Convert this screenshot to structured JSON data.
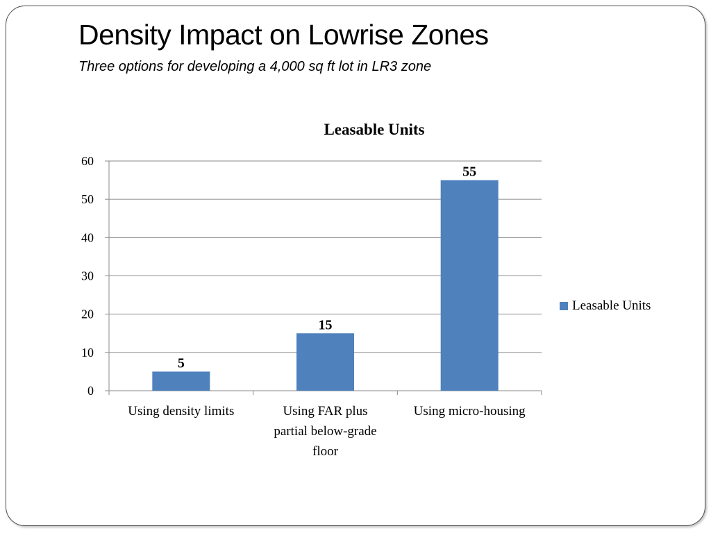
{
  "slide": {
    "title": "Density Impact on Lowrise Zones",
    "subtitle": "Three options for developing a 4,000 sq ft lot in LR3  zone"
  },
  "chart_data": {
    "type": "bar",
    "title": "Leasable Units",
    "xlabel": "",
    "ylabel": "",
    "categories": [
      "Using density limits",
      "Using FAR plus partial below-grade floor",
      "Using micro-housing"
    ],
    "category_lines": [
      [
        "Using density limits"
      ],
      [
        "Using FAR plus",
        "partial below-grade",
        "floor"
      ],
      [
        "Using micro-housing"
      ]
    ],
    "series": [
      {
        "name": "Leasable Units",
        "values": [
          5,
          15,
          55
        ],
        "color": "#4F81BD"
      }
    ],
    "data_labels": [
      "5",
      "15",
      "55"
    ],
    "ylim": [
      0,
      60
    ],
    "yticks": [
      0,
      10,
      20,
      30,
      40,
      50,
      60
    ],
    "grid": true,
    "legend_position": "right"
  }
}
